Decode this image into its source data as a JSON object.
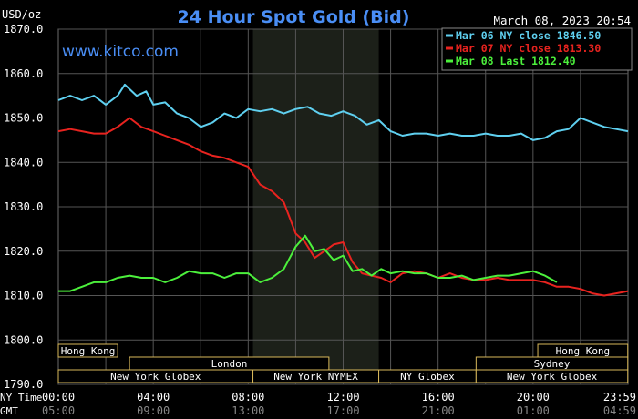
{
  "header": {
    "unit": "USD/oz",
    "title": "24 Hour Spot Gold (Bid)",
    "datetime": "March 08, 2023 20:54",
    "watermark": "www.kitco.com"
  },
  "legend": [
    {
      "label": "Mar 06 NY close 1846.50",
      "color": "#5fd0f0"
    },
    {
      "label": "Mar 07 NY close 1813.30",
      "color": "#e8231f"
    },
    {
      "label": "Mar 08 Last 1812.40",
      "color": "#4cf03c"
    }
  ],
  "time_labels": {
    "ny_prefix": "NY Time",
    "gmt_prefix": "GMT",
    "ny": [
      "00:00",
      "04:00",
      "08:00",
      "12:00",
      "16:00",
      "20:00",
      "23:59"
    ],
    "gmt": [
      "05:00",
      "09:00",
      "13:00",
      "17:00",
      "21:00",
      "01:00",
      "04:59"
    ]
  },
  "sessions": [
    {
      "label": "Hong Kong",
      "row": 0,
      "start": 0,
      "end": 2.5
    },
    {
      "label": "Hong Kong",
      "row": 0,
      "start": 20.2,
      "end": 23.99
    },
    {
      "label": "London",
      "row": 1,
      "start": 3,
      "end": 11.4
    },
    {
      "label": "Sydney",
      "row": 1,
      "start": 17.6,
      "end": 23.99
    },
    {
      "label": "New York Globex",
      "row": 2,
      "start": 0,
      "end": 8.2
    },
    {
      "label": "New York NYMEX",
      "row": 2,
      "start": 8.2,
      "end": 13.5
    },
    {
      "label": "NY Globex",
      "row": 2,
      "start": 13.5,
      "end": 17.6
    },
    {
      "label": "New York Globex",
      "row": 2,
      "start": 17.6,
      "end": 23.99
    }
  ],
  "chart_data": {
    "type": "line",
    "ylabel": "USD/oz",
    "ylim": [
      1790,
      1870
    ],
    "yticks": [
      "1870.0",
      "1860.0",
      "1850.0",
      "1840.0",
      "1830.0",
      "1820.0",
      "1810.0",
      "1800.0",
      "1790.0"
    ],
    "xlim_hours": [
      0,
      24
    ],
    "shaded_region_hours": [
      8.2,
      13.5
    ],
    "grid": true,
    "series": [
      {
        "name": "Mar 06 NY close 1846.50",
        "color": "#5fd0f0",
        "x": [
          0,
          0.5,
          1,
          1.5,
          2,
          2.5,
          2.8,
          3.3,
          3.7,
          4,
          4.5,
          5,
          5.5,
          6,
          6.5,
          7,
          7.5,
          8,
          8.5,
          9,
          9.5,
          10,
          10.5,
          11,
          11.5,
          12,
          12.5,
          13,
          13.5,
          14,
          14.5,
          15,
          15.5,
          16,
          16.5,
          17,
          17.5,
          18,
          18.5,
          19,
          19.5,
          20,
          20.5,
          21,
          21.5,
          22,
          22.5,
          23,
          23.5,
          24
        ],
        "y": [
          1854,
          1855,
          1854,
          1855,
          1853,
          1855,
          1857.5,
          1855,
          1856,
          1853,
          1853.5,
          1851,
          1850,
          1848,
          1849,
          1851,
          1850,
          1852,
          1851.5,
          1852,
          1851,
          1852,
          1852.5,
          1851,
          1850.5,
          1851.5,
          1850.5,
          1848.5,
          1849.5,
          1847,
          1846,
          1846.5,
          1846.5,
          1846,
          1846.5,
          1846,
          1846,
          1846.5,
          1846,
          1846,
          1846.5,
          1845,
          1845.5,
          1847,
          1847.5,
          1850,
          1849,
          1848,
          1847.5,
          1847
        ]
      },
      {
        "name": "Mar 07 NY close 1813.30",
        "color": "#e8231f",
        "x": [
          0,
          0.5,
          1,
          1.5,
          2,
          2.5,
          3,
          3.5,
          4,
          4.5,
          5,
          5.5,
          6,
          6.5,
          7,
          7.5,
          8,
          8.5,
          9,
          9.5,
          10,
          10.4,
          10.8,
          11.2,
          11.6,
          12,
          12.4,
          12.8,
          13.2,
          13.6,
          14,
          14.5,
          15,
          15.5,
          16,
          16.5,
          17,
          17.5,
          18,
          18.5,
          19,
          19.5,
          20,
          20.5,
          21,
          21.5,
          22,
          22.5,
          23,
          23.5,
          24
        ],
        "y": [
          1847,
          1847.5,
          1847,
          1846.5,
          1846.5,
          1848,
          1850,
          1848,
          1847,
          1846,
          1845,
          1844,
          1842.5,
          1841.5,
          1841,
          1840,
          1839,
          1835,
          1833.5,
          1831,
          1824,
          1822,
          1818.5,
          1820,
          1821.5,
          1822,
          1817.5,
          1815,
          1814.5,
          1814,
          1813,
          1815,
          1815.5,
          1815,
          1814,
          1815,
          1814,
          1813.5,
          1813.5,
          1814,
          1813.5,
          1813.5,
          1813.5,
          1813,
          1812,
          1812,
          1811.5,
          1810.5,
          1810,
          1810.5,
          1811
        ]
      },
      {
        "name": "Mar 08 Last 1812.40",
        "color": "#4cf03c",
        "x": [
          0,
          0.5,
          1,
          1.5,
          2,
          2.5,
          3,
          3.5,
          4,
          4.5,
          5,
          5.5,
          6,
          6.5,
          7,
          7.5,
          8,
          8.5,
          9,
          9.5,
          10,
          10.4,
          10.8,
          11.2,
          11.6,
          12,
          12.4,
          12.8,
          13.2,
          13.6,
          14,
          14.5,
          15,
          15.5,
          16,
          16.5,
          17,
          17.5,
          18,
          18.5,
          19,
          19.5,
          20,
          20.5,
          21
        ],
        "y": [
          1811,
          1811,
          1812,
          1813,
          1813,
          1814,
          1814.5,
          1814,
          1814,
          1813,
          1814,
          1815.5,
          1815,
          1815,
          1814,
          1815,
          1815,
          1813,
          1814,
          1816,
          1821,
          1823.5,
          1820,
          1820.5,
          1818,
          1819,
          1815.5,
          1816,
          1814.5,
          1816,
          1815,
          1815.5,
          1815,
          1815,
          1814,
          1814,
          1814.5,
          1813.5,
          1814,
          1814.5,
          1814.5,
          1815,
          1815.5,
          1814.5,
          1813
        ]
      }
    ]
  }
}
